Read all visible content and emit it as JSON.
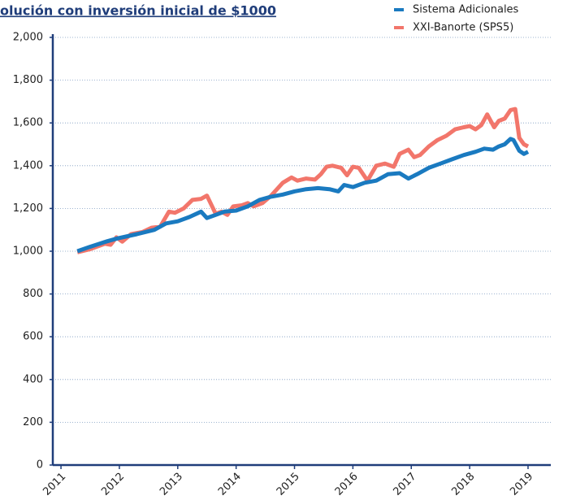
{
  "chart_data": {
    "type": "line",
    "title": "olución con inversión inicial de $1000",
    "legend": "upper right",
    "grid": true,
    "xlim": [
      2010.86,
      2019.39
    ],
    "xticks": [
      2011,
      2012,
      2013,
      2014,
      2015,
      2016,
      2017,
      2018,
      2019
    ],
    "ylim": [
      0,
      2000
    ],
    "yticks": [
      0,
      200,
      400,
      600,
      800,
      {
        "value": 1000,
        "label": "1,000"
      },
      {
        "value": 1200,
        "label": "1,200"
      },
      {
        "value": 1400,
        "label": "1,400"
      },
      {
        "value": 1600,
        "label": "1,600"
      },
      {
        "value": 1800,
        "label": "1,800"
      },
      {
        "value": 2000,
        "label": "2,000"
      }
    ],
    "series": [
      {
        "name": "Sistema Adicionales",
        "color": "#1a7ac0",
        "x": [
          2011.28,
          2011.49,
          2011.77,
          2011.97,
          2012.3,
          2012.6,
          2012.8,
          2013.0,
          2013.2,
          2013.4,
          2013.5,
          2013.65,
          2013.8,
          2014.0,
          2014.2,
          2014.4,
          2014.6,
          2014.8,
          2015.0,
          2015.2,
          2015.4,
          2015.6,
          2015.75,
          2015.85,
          2016.0,
          2016.2,
          2016.4,
          2016.6,
          2016.8,
          2016.95,
          2017.1,
          2017.3,
          2017.5,
          2017.7,
          2017.9,
          2018.1,
          2018.25,
          2018.4,
          2018.5,
          2018.6,
          2018.7,
          2018.75,
          2018.85,
          2018.93,
          2019.0
        ],
        "values": [
          1000,
          1020,
          1045,
          1060,
          1080,
          1100,
          1130,
          1140,
          1160,
          1185,
          1155,
          1170,
          1185,
          1190,
          1210,
          1240,
          1255,
          1265,
          1280,
          1290,
          1295,
          1290,
          1280,
          1310,
          1300,
          1320,
          1330,
          1360,
          1365,
          1340,
          1360,
          1390,
          1410,
          1430,
          1450,
          1465,
          1480,
          1475,
          1490,
          1500,
          1525,
          1520,
          1470,
          1455,
          1465
        ]
      },
      {
        "name": "XXI-Banorte (SPS5)",
        "color": "#f2766b",
        "x": [
          2011.28,
          2011.5,
          2011.75,
          2011.85,
          2011.95,
          2012.05,
          2012.2,
          2012.4,
          2012.55,
          2012.7,
          2012.85,
          2012.95,
          2013.1,
          2013.25,
          2013.4,
          2013.5,
          2013.65,
          2013.75,
          2013.85,
          2013.95,
          2014.1,
          2014.2,
          2014.3,
          2014.45,
          2014.6,
          2014.8,
          2014.95,
          2015.05,
          2015.2,
          2015.35,
          2015.45,
          2015.55,
          2015.65,
          2015.8,
          2015.9,
          2016.0,
          2016.1,
          2016.25,
          2016.4,
          2016.55,
          2016.7,
          2016.8,
          2016.95,
          2017.05,
          2017.15,
          2017.3,
          2017.45,
          2017.6,
          2017.75,
          2017.9,
          2018.0,
          2018.1,
          2018.2,
          2018.3,
          2018.42,
          2018.5,
          2018.6,
          2018.7,
          2018.78,
          2018.85,
          2018.93,
          2019.0
        ],
        "values": [
          995,
          1010,
          1035,
          1030,
          1065,
          1045,
          1080,
          1090,
          1110,
          1115,
          1185,
          1180,
          1200,
          1240,
          1245,
          1260,
          1175,
          1185,
          1170,
          1210,
          1215,
          1225,
          1210,
          1225,
          1260,
          1320,
          1345,
          1330,
          1340,
          1335,
          1360,
          1395,
          1400,
          1390,
          1355,
          1395,
          1390,
          1330,
          1400,
          1410,
          1395,
          1455,
          1475,
          1440,
          1450,
          1490,
          1520,
          1540,
          1570,
          1580,
          1585,
          1570,
          1590,
          1640,
          1580,
          1610,
          1620,
          1660,
          1665,
          1530,
          1500,
          1490
        ]
      }
    ]
  }
}
